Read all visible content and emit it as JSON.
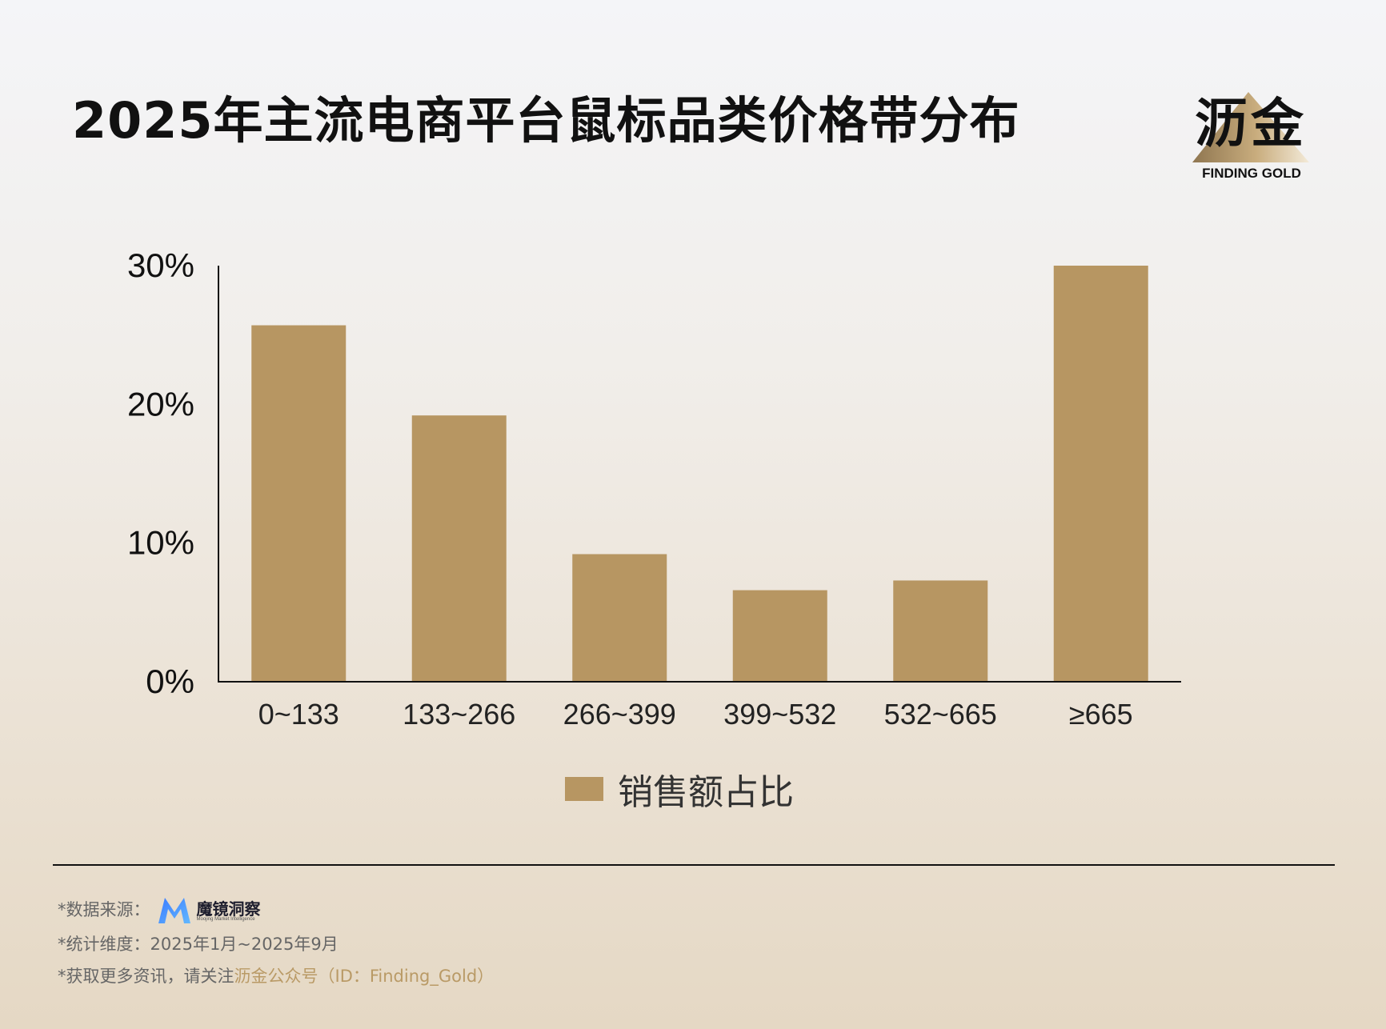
{
  "header": {
    "title": "2025年主流电商平台鼠标品类价格带分布"
  },
  "logo": {
    "text": "沥金",
    "subtitle": "FINDING GOLD",
    "accent": "#b99a66"
  },
  "chart_data": {
    "type": "bar",
    "categories": [
      "0~133",
      "133~266",
      "266~399",
      "399~532",
      "532~665",
      "≥665"
    ],
    "series": [
      {
        "name": "销售额占比",
        "values": [
          25.7,
          19.2,
          9.2,
          6.6,
          7.3,
          30.0
        ],
        "color": "#b79662"
      }
    ],
    "y_ticks": [
      0,
      10,
      20,
      30
    ],
    "y_tick_labels": [
      "0%",
      "10%",
      "20%",
      "30%"
    ],
    "ylim": [
      0,
      30
    ],
    "grid": false,
    "legend_position": "bottom-center"
  },
  "legend": {
    "label": "销售额占比",
    "color": "#b79662"
  },
  "footer": {
    "source_prefix": "*数据来源：",
    "source_brand_name": "魔镜洞察",
    "source_brand_sub": "Moojing Market Intelligence",
    "stats_line": "*统计维度：2025年1月~2025年9月",
    "follow_prefix": "*获取更多资讯，请关注",
    "follow_highlight": "沥金公众号（ID：Finding_Gold）"
  }
}
